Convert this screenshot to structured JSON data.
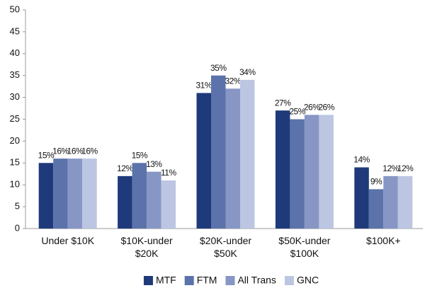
{
  "chart_data": {
    "type": "bar",
    "categories": [
      "Under $10K",
      "$10K-under $20K",
      "$20K-under $50K",
      "$50K-under $100K",
      "$100K+"
    ],
    "series": [
      {
        "name": "MTF",
        "color": "#1f3a7a",
        "values": [
          15,
          12,
          31,
          27,
          14
        ],
        "value_labels": [
          "15%",
          "12%",
          "31%",
          "27%",
          "14%"
        ]
      },
      {
        "name": "FTM",
        "color": "#5b73aa",
        "values": [
          16,
          15,
          35,
          25,
          9
        ],
        "value_labels": [
          "16%",
          "15%",
          "35%",
          "25%",
          "9%"
        ]
      },
      {
        "name": "All Trans",
        "color": "#8796c4",
        "values": [
          16,
          13,
          32,
          26,
          12
        ],
        "value_labels": [
          "16%",
          "13%",
          "32%",
          "26%",
          "12%"
        ]
      },
      {
        "name": "GNC",
        "color": "#bcc6e2",
        "values": [
          16,
          11,
          34,
          26,
          12
        ],
        "value_labels": [
          "16%",
          "11%",
          "34%",
          "26%",
          "12%"
        ]
      }
    ],
    "ylim": [
      0,
      50
    ],
    "yticks": [
      0,
      5,
      10,
      15,
      20,
      25,
      30,
      35,
      40,
      45,
      50
    ],
    "grid": false,
    "legend": "bottom"
  }
}
